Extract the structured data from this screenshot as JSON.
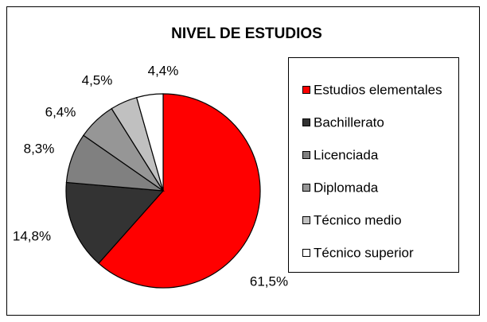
{
  "chart_data": {
    "type": "pie",
    "title": "NIVEL DE ESTUDIOS",
    "categories": [
      "Estudios elementales",
      "Bachillerato",
      "Licenciada",
      "Diplomada",
      "Técnico medio",
      "Técnico superior"
    ],
    "values": [
      61.5,
      14.8,
      8.3,
      6.4,
      4.5,
      4.4
    ],
    "value_labels": [
      "61,5%",
      "14,8%",
      "8,3%",
      "6,4%",
      "4,5%",
      "4,4%"
    ],
    "colors": [
      "#ff0000",
      "#333333",
      "#808080",
      "#969696",
      "#c0c0c0",
      "#ffffff"
    ],
    "legend": "right"
  }
}
